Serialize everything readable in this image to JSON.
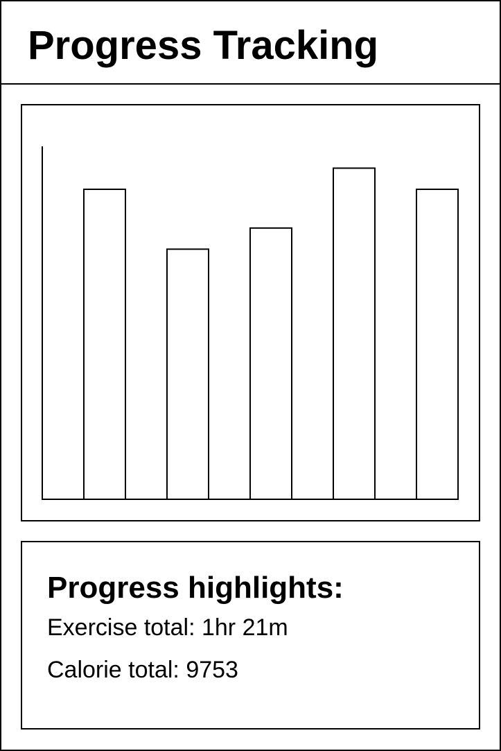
{
  "header": {
    "title": "Progress Tracking"
  },
  "chart_data": {
    "type": "bar",
    "categories": [
      null,
      null,
      null,
      null,
      null
    ],
    "values": [
      88,
      71,
      77,
      94,
      88
    ],
    "color": "#ffffff",
    "ylim": [
      0,
      100
    ]
  },
  "highlights": {
    "title": "Progress highlights:",
    "items": [
      "Exercise total: 1hr 21m",
      "Calorie total: 9753"
    ]
  }
}
